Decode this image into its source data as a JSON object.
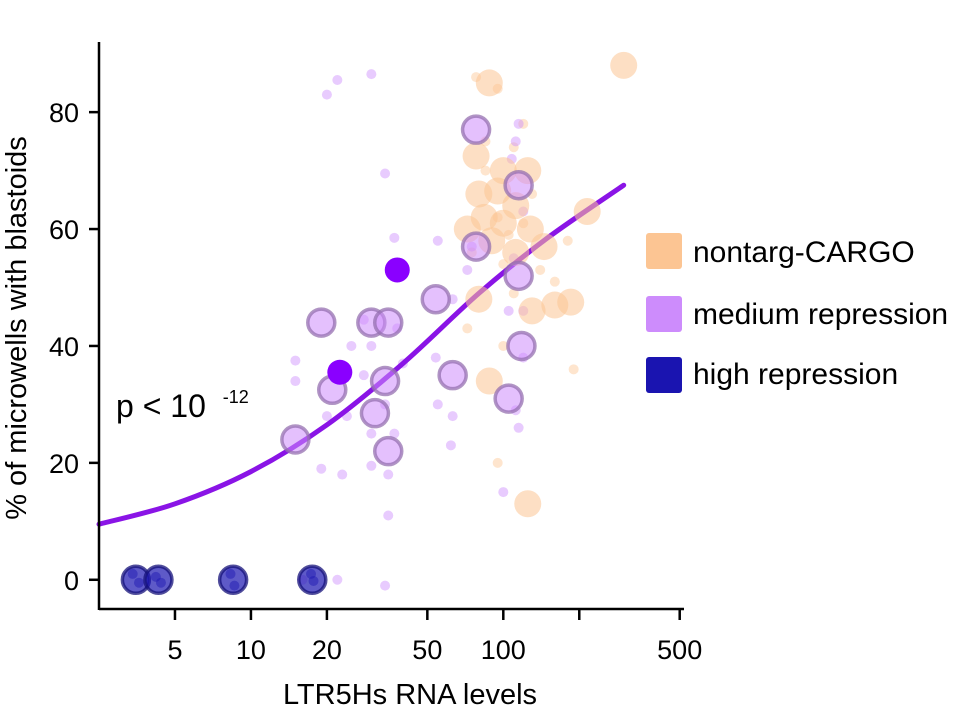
{
  "chart_data": {
    "type": "scatter",
    "xscale": "log",
    "xlabel": "LTR5Hs RNA levels",
    "ylabel": "% of microwells with blastoids",
    "xlim": [
      2.5,
      520
    ],
    "ylim": [
      -5,
      92
    ],
    "xticks": [
      {
        "value": 5,
        "label": "5"
      },
      {
        "value": 10,
        "label": "10"
      },
      {
        "value": 20,
        "label": "20"
      },
      {
        "value": 50,
        "label": "50"
      },
      {
        "value": 100,
        "label": "100"
      },
      {
        "value": 200,
        "label": ""
      },
      {
        "value": 500,
        "label": "500"
      }
    ],
    "yticks": [
      {
        "value": 0,
        "label": "0"
      },
      {
        "value": 20,
        "label": "20"
      },
      {
        "value": 40,
        "label": "40"
      },
      {
        "value": 60,
        "label": "60"
      },
      {
        "value": 80,
        "label": "80"
      }
    ],
    "annotation": {
      "text": "p < 10",
      "exponent": "-12"
    },
    "legend": {
      "position": "right",
      "items": [
        {
          "label": "nontarg-CARGO",
          "color": "#fcc593"
        },
        {
          "label": "medium repression",
          "color": "#cd8cfc"
        },
        {
          "label": "high repression",
          "color": "#1a14b0"
        }
      ]
    },
    "fit": {
      "name": "logistic fit",
      "color": "#8a14e6",
      "x": [
        2.5,
        5,
        10,
        20,
        40,
        80,
        150,
        300
      ],
      "y": [
        9.5,
        13,
        18.5,
        26.5,
        37,
        49,
        58.5,
        67.5
      ]
    },
    "series": [
      {
        "name": "nontarg-CARGO",
        "role": "means",
        "color": "#fcc593",
        "points": [
          [
            300,
            88
          ],
          [
            88,
            85
          ],
          [
            78,
            72.5
          ],
          [
            80,
            66
          ],
          [
            95,
            66.5
          ],
          [
            100,
            70
          ],
          [
            125,
            70
          ],
          [
            112,
            64
          ],
          [
            128,
            60
          ],
          [
            72,
            60
          ],
          [
            84,
            62
          ],
          [
            90,
            58
          ],
          [
            100,
            61
          ],
          [
            145,
            57
          ],
          [
            112,
            56
          ],
          [
            80,
            48
          ],
          [
            88,
            34
          ],
          [
            130,
            46
          ],
          [
            160,
            47
          ],
          [
            185,
            47.5
          ],
          [
            215,
            63
          ],
          [
            125,
            13
          ]
        ]
      },
      {
        "name": "medium repression",
        "role": "means",
        "color": "#cd8cfc",
        "points": [
          [
            78,
            77
          ],
          [
            15,
            24
          ],
          [
            21,
            32.5
          ],
          [
            19,
            44
          ],
          [
            30,
            44
          ],
          [
            35,
            44
          ],
          [
            34,
            34
          ],
          [
            31,
            28.5
          ],
          [
            35,
            22
          ],
          [
            54,
            48
          ],
          [
            63,
            35
          ],
          [
            78,
            57
          ],
          [
            115,
            67.5
          ],
          [
            115,
            52
          ],
          [
            118,
            40
          ],
          [
            105,
            31
          ]
        ]
      },
      {
        "name": "medium repression (highlighted)",
        "role": "means",
        "color": "#8a00ff",
        "points": [
          [
            38,
            53
          ],
          [
            22.5,
            35.5
          ]
        ]
      },
      {
        "name": "high repression",
        "role": "means",
        "color": "#1a14b0",
        "points": [
          [
            3.5,
            0
          ],
          [
            4.3,
            0
          ],
          [
            8.5,
            0
          ],
          [
            17.5,
            0
          ]
        ]
      },
      {
        "name": "nontarg-CARGO replicates",
        "role": "replicates",
        "color": "#fcc593",
        "points": [
          [
            78,
            86
          ],
          [
            95,
            84
          ],
          [
            120,
            78
          ],
          [
            110,
            74
          ],
          [
            85,
            70
          ],
          [
            120,
            61
          ],
          [
            105,
            59
          ],
          [
            75,
            56
          ],
          [
            100,
            54
          ],
          [
            140,
            53
          ],
          [
            160,
            51
          ],
          [
            110,
            49
          ],
          [
            72,
            43
          ],
          [
            100,
            40
          ],
          [
            95,
            20
          ],
          [
            190,
            36
          ],
          [
            180,
            58
          ],
          [
            85,
            75
          ],
          [
            130,
            66
          ],
          [
            95,
            62
          ]
        ]
      },
      {
        "name": "medium repression replicates",
        "role": "replicates",
        "color": "#cd8cfc",
        "points": [
          [
            20,
            83
          ],
          [
            22,
            85.5
          ],
          [
            30,
            86.5
          ],
          [
            34,
            69.5
          ],
          [
            115,
            78
          ],
          [
            112,
            75
          ],
          [
            108,
            72
          ],
          [
            37,
            58.5
          ],
          [
            55,
            58
          ],
          [
            72,
            53
          ],
          [
            75,
            57
          ],
          [
            120,
            63
          ],
          [
            110,
            55
          ],
          [
            120,
            46
          ],
          [
            105,
            46
          ],
          [
            15,
            37.5
          ],
          [
            15,
            34
          ],
          [
            25,
            40
          ],
          [
            30,
            40
          ],
          [
            28,
            44.5
          ],
          [
            38,
            43
          ],
          [
            40,
            37
          ],
          [
            28,
            35
          ],
          [
            34,
            30
          ],
          [
            30,
            25
          ],
          [
            37,
            25
          ],
          [
            54,
            38
          ],
          [
            55,
            30
          ],
          [
            63,
            28
          ],
          [
            62,
            23
          ],
          [
            63,
            48
          ],
          [
            20,
            28
          ],
          [
            24,
            28
          ],
          [
            19,
            19
          ],
          [
            23,
            18
          ],
          [
            30,
            19.5
          ],
          [
            35,
            18
          ],
          [
            35,
            11
          ],
          [
            100,
            15
          ],
          [
            112,
            29
          ],
          [
            115,
            26
          ],
          [
            120,
            38
          ],
          [
            16,
            0
          ],
          [
            22,
            0
          ],
          [
            34,
            -1
          ]
        ]
      },
      {
        "name": "high repression replicates",
        "role": "replicates",
        "color": "#1a14b0",
        "points": [
          [
            3.4,
            1
          ],
          [
            3.6,
            -0.5
          ],
          [
            4.2,
            0.5
          ],
          [
            4.4,
            -0.5
          ],
          [
            8.3,
            1
          ],
          [
            8.6,
            -1
          ],
          [
            17.3,
            1
          ],
          [
            17.7,
            -0.2
          ]
        ]
      }
    ]
  }
}
